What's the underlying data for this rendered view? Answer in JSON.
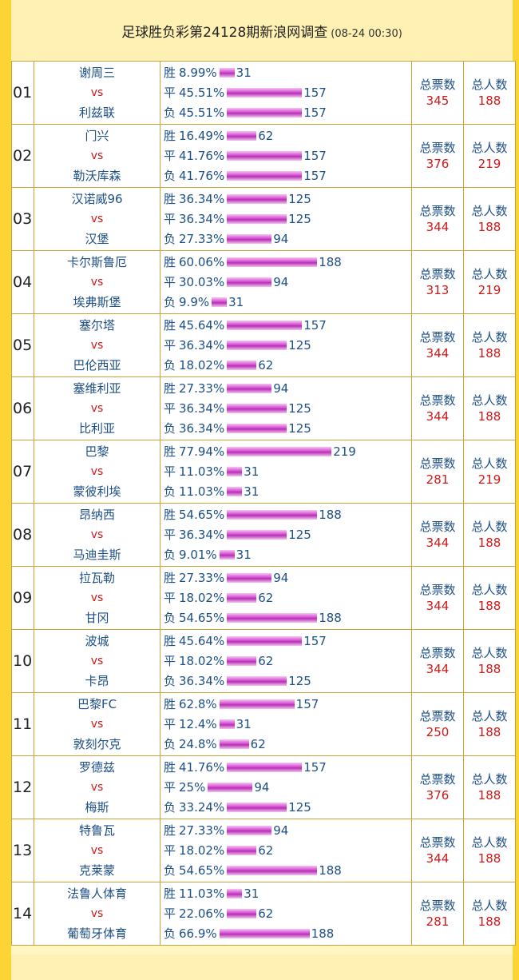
{
  "header": {
    "title": "足球胜负彩第24128期新浪网调查",
    "timestamp": "(08-24 00:30)"
  },
  "labels": {
    "vs": "vs",
    "total_votes": "总票数",
    "total_people": "总人数"
  },
  "colors": {
    "background": "#fcd535",
    "team_text": "#1d4f86",
    "vs_text": "#d01818",
    "bar": "#c93bc6"
  },
  "matches": [
    {
      "no": "01",
      "home": "谢周三",
      "away": "利兹联",
      "win": {
        "label": "胜",
        "pct": "8.99%",
        "count": 31
      },
      "draw": {
        "label": "平",
        "pct": "45.51%",
        "count": 157
      },
      "lose": {
        "label": "负",
        "pct": "45.51%",
        "count": 157
      },
      "votes": "345",
      "people": "188"
    },
    {
      "no": "02",
      "home": "门兴",
      "away": "勒沃库森",
      "win": {
        "label": "胜",
        "pct": "16.49%",
        "count": 62
      },
      "draw": {
        "label": "平",
        "pct": "41.76%",
        "count": 157
      },
      "lose": {
        "label": "负",
        "pct": "41.76%",
        "count": 157
      },
      "votes": "376",
      "people": "219"
    },
    {
      "no": "03",
      "home": "汉诺威96",
      "away": "汉堡",
      "win": {
        "label": "胜",
        "pct": "36.34%",
        "count": 125
      },
      "draw": {
        "label": "平",
        "pct": "36.34%",
        "count": 125
      },
      "lose": {
        "label": "负",
        "pct": "27.33%",
        "count": 94
      },
      "votes": "344",
      "people": "188"
    },
    {
      "no": "04",
      "home": "卡尔斯鲁厄",
      "away": "埃弗斯堡",
      "win": {
        "label": "胜",
        "pct": "60.06%",
        "count": 188
      },
      "draw": {
        "label": "平",
        "pct": "30.03%",
        "count": 94
      },
      "lose": {
        "label": "负",
        "pct": "9.9%",
        "count": 31
      },
      "votes": "313",
      "people": "219"
    },
    {
      "no": "05",
      "home": "塞尔塔",
      "away": "巴伦西亚",
      "win": {
        "label": "胜",
        "pct": "45.64%",
        "count": 157
      },
      "draw": {
        "label": "平",
        "pct": "36.34%",
        "count": 125
      },
      "lose": {
        "label": "负",
        "pct": "18.02%",
        "count": 62
      },
      "votes": "344",
      "people": "188"
    },
    {
      "no": "06",
      "home": "塞维利亚",
      "away": "比利亚",
      "win": {
        "label": "胜",
        "pct": "27.33%",
        "count": 94
      },
      "draw": {
        "label": "平",
        "pct": "36.34%",
        "count": 125
      },
      "lose": {
        "label": "负",
        "pct": "36.34%",
        "count": 125
      },
      "votes": "344",
      "people": "188"
    },
    {
      "no": "07",
      "home": "巴黎",
      "away": "蒙彼利埃",
      "win": {
        "label": "胜",
        "pct": "77.94%",
        "count": 219
      },
      "draw": {
        "label": "平",
        "pct": "11.03%",
        "count": 31
      },
      "lose": {
        "label": "负",
        "pct": "11.03%",
        "count": 31
      },
      "votes": "281",
      "people": "219"
    },
    {
      "no": "08",
      "home": "昂纳西",
      "away": "马迪圭斯",
      "win": {
        "label": "胜",
        "pct": "54.65%",
        "count": 188
      },
      "draw": {
        "label": "平",
        "pct": "36.34%",
        "count": 125
      },
      "lose": {
        "label": "负",
        "pct": "9.01%",
        "count": 31
      },
      "votes": "344",
      "people": "188"
    },
    {
      "no": "09",
      "home": "拉瓦勒",
      "away": "甘冈",
      "win": {
        "label": "胜",
        "pct": "27.33%",
        "count": 94
      },
      "draw": {
        "label": "平",
        "pct": "18.02%",
        "count": 62
      },
      "lose": {
        "label": "负",
        "pct": "54.65%",
        "count": 188
      },
      "votes": "344",
      "people": "188"
    },
    {
      "no": "10",
      "home": "波城",
      "away": "卡昂",
      "win": {
        "label": "胜",
        "pct": "45.64%",
        "count": 157
      },
      "draw": {
        "label": "平",
        "pct": "18.02%",
        "count": 62
      },
      "lose": {
        "label": "负",
        "pct": "36.34%",
        "count": 125
      },
      "votes": "344",
      "people": "188"
    },
    {
      "no": "11",
      "home": "巴黎FC",
      "away": "敦刻尔克",
      "win": {
        "label": "胜",
        "pct": "62.8%",
        "count": 157
      },
      "draw": {
        "label": "平",
        "pct": "12.4%",
        "count": 31
      },
      "lose": {
        "label": "负",
        "pct": "24.8%",
        "count": 62
      },
      "votes": "250",
      "people": "188"
    },
    {
      "no": "12",
      "home": "罗德兹",
      "away": "梅斯",
      "win": {
        "label": "胜",
        "pct": "41.76%",
        "count": 157
      },
      "draw": {
        "label": "平",
        "pct": "25%",
        "count": 94
      },
      "lose": {
        "label": "负",
        "pct": "33.24%",
        "count": 125
      },
      "votes": "376",
      "people": "188"
    },
    {
      "no": "13",
      "home": "特鲁瓦",
      "away": "克莱蒙",
      "win": {
        "label": "胜",
        "pct": "27.33%",
        "count": 94
      },
      "draw": {
        "label": "平",
        "pct": "18.02%",
        "count": 62
      },
      "lose": {
        "label": "负",
        "pct": "54.65%",
        "count": 188
      },
      "votes": "344",
      "people": "188"
    },
    {
      "no": "14",
      "home": "法鲁人体育",
      "away": "葡萄牙体育",
      "win": {
        "label": "胜",
        "pct": "11.03%",
        "count": 31
      },
      "draw": {
        "label": "平",
        "pct": "22.06%",
        "count": 62
      },
      "lose": {
        "label": "负",
        "pct": "66.9%",
        "count": 188
      },
      "votes": "281",
      "people": "188"
    }
  ]
}
